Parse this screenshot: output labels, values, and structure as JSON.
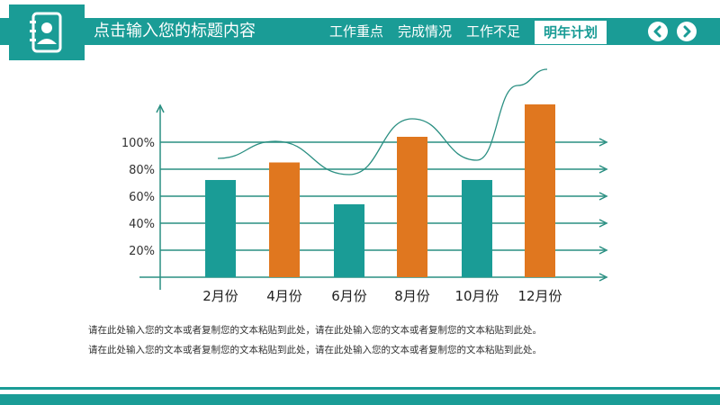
{
  "header": {
    "title": "点击输入您的标题内容",
    "tabs": [
      {
        "label": "工作重点",
        "active": false
      },
      {
        "label": "完成情况",
        "active": false
      },
      {
        "label": "工作不足",
        "active": false
      },
      {
        "label": "明年计划",
        "active": true
      }
    ],
    "logo_icon": "contact-book-icon",
    "prev_icon": "chevron-left-icon",
    "next_icon": "chevron-right-icon"
  },
  "colors": {
    "teal": "#1a9c96",
    "orange": "#e0771f",
    "axis": "#2a8f82",
    "text": "#333333"
  },
  "chart_data": {
    "type": "bar",
    "categories": [
      "2月份",
      "4月份",
      "6月份",
      "8月份",
      "10月份",
      "12月份"
    ],
    "values": [
      72,
      85,
      54,
      104,
      72,
      128
    ],
    "bar_colors": [
      "#1a9c96",
      "#e0771f",
      "#1a9c96",
      "#e0771f",
      "#1a9c96",
      "#e0771f"
    ],
    "y_ticks": [
      20,
      40,
      60,
      80,
      100
    ],
    "y_tick_labels": [
      "20%",
      "40%",
      "60%",
      "80%",
      "100%"
    ],
    "ylim": [
      0,
      140
    ],
    "trend_line": true,
    "grid": true,
    "title": "",
    "xlabel": "",
    "ylabel": ""
  },
  "body": {
    "paragraph_line_1": "请在此处输入您的文本或者复制您的文本粘贴到此处，请在此处输入您的文本或者复制您的文本粘贴到此处。",
    "paragraph_line_2": "请在此处输入您的文本或者复制您的文本粘贴到此处，请在此处输入您的文本或者复制您的文本粘贴到此处。"
  }
}
